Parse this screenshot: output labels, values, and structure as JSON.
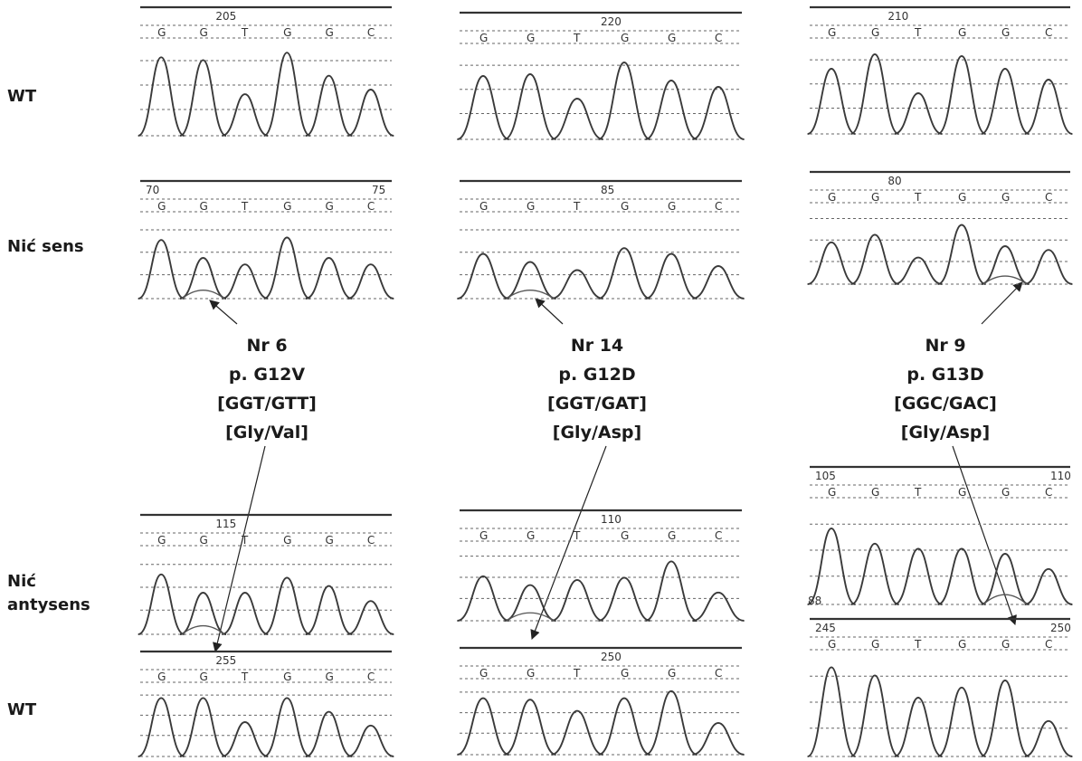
{
  "row_labels": [
    {
      "text": "WT"
    },
    {
      "text": "Nić sens"
    },
    {
      "text": "Nić\nantysens"
    },
    {
      "text": "WT"
    }
  ],
  "mutations": [
    {
      "id": "Nr 6",
      "protein": "p. G12V",
      "codon": "[GGT/GTT]",
      "aa": "[Gly/Val]"
    },
    {
      "id": "Nr 14",
      "protein": "p. G12D",
      "codon": "[GGT/GAT]",
      "aa": "[Gly/Asp]"
    },
    {
      "id": "Nr 9",
      "protein": "p. G13D",
      "codon": "[GGC/GAC]",
      "aa": "[Gly/Asp]"
    }
  ],
  "panels": [
    {
      "name": "wt-top-1",
      "bases": [
        "G",
        "G",
        "T",
        "G",
        "G",
        "C"
      ],
      "pos_labels": [
        "205"
      ],
      "heights": [
        0.85,
        0.82,
        0.45,
        0.9,
        0.65,
        0.5
      ],
      "low": []
    },
    {
      "name": "wt-top-2",
      "bases": [
        "G",
        "G",
        "T",
        "G",
        "G",
        "C"
      ],
      "pos_labels": [
        "220"
      ],
      "heights": [
        0.7,
        0.72,
        0.45,
        0.85,
        0.65,
        0.58
      ],
      "low": []
    },
    {
      "name": "wt-top-3",
      "bases": [
        "G",
        "G",
        "T",
        "G",
        "G",
        "C"
      ],
      "pos_labels": [
        "210"
      ],
      "heights": [
        0.72,
        0.88,
        0.45,
        0.86,
        0.72,
        0.6
      ],
      "low": []
    },
    {
      "name": "sens-1",
      "bases": [
        "G",
        "G",
        "T",
        "G",
        "G",
        "C"
      ],
      "pos_labels": [
        "70",
        "75"
      ],
      "heights": [
        0.72,
        0.5,
        0.42,
        0.75,
        0.5,
        0.42
      ],
      "low": [
        1
      ]
    },
    {
      "name": "sens-2",
      "bases": [
        "G",
        "G",
        "T",
        "G",
        "G",
        "C"
      ],
      "pos_labels": [
        "85"
      ],
      "heights": [
        0.55,
        0.45,
        0.35,
        0.62,
        0.55,
        0.4
      ],
      "low": [
        1
      ]
    },
    {
      "name": "sens-3",
      "bases": [
        "G",
        "G",
        "T",
        "G",
        "G",
        "C"
      ],
      "pos_labels": [
        "80"
      ],
      "heights": [
        0.55,
        0.65,
        0.35,
        0.78,
        0.5,
        0.45
      ],
      "low": [
        4
      ]
    },
    {
      "name": "anty-1",
      "bases": [
        "G",
        "G",
        "T",
        "G",
        "G",
        "C"
      ],
      "pos_labels": [
        "115"
      ],
      "heights": [
        0.72,
        0.5,
        0.5,
        0.68,
        0.58,
        0.4
      ],
      "low": [
        1
      ]
    },
    {
      "name": "anty-2",
      "bases": [
        "G",
        "G",
        "T",
        "G",
        "G",
        "C"
      ],
      "pos_labels": [
        "110"
      ],
      "heights": [
        0.6,
        0.48,
        0.55,
        0.58,
        0.8,
        0.38
      ],
      "low": [
        1
      ]
    },
    {
      "name": "anty-3",
      "bases": [
        "G",
        "G",
        "T",
        "G",
        "G",
        "C"
      ],
      "pos_labels": [
        "105",
        "110"
      ],
      "heights": [
        0.75,
        0.6,
        0.55,
        0.55,
        0.5,
        0.35
      ],
      "low": [
        4
      ]
    },
    {
      "name": "wt-bot-1",
      "bases": [
        "G",
        "G",
        "T",
        "G",
        "G",
        "C"
      ],
      "pos_labels": [
        "255"
      ],
      "heights": [
        0.85,
        0.85,
        0.5,
        0.85,
        0.65,
        0.45
      ],
      "low": []
    },
    {
      "name": "wt-bot-2",
      "bases": [
        "G",
        "G",
        "T",
        "G",
        "G",
        "C"
      ],
      "pos_labels": [
        "250"
      ],
      "heights": [
        0.8,
        0.78,
        0.62,
        0.8,
        0.9,
        0.45
      ],
      "low": []
    },
    {
      "name": "wt-bot-3",
      "bases": [
        "G",
        "G",
        "T",
        "G",
        "G",
        "C"
      ],
      "pos_labels": [
        "88",
        "245",
        "250"
      ],
      "heights": [
        0.88,
        0.8,
        0.58,
        0.68,
        0.75,
        0.35
      ],
      "low": []
    }
  ]
}
